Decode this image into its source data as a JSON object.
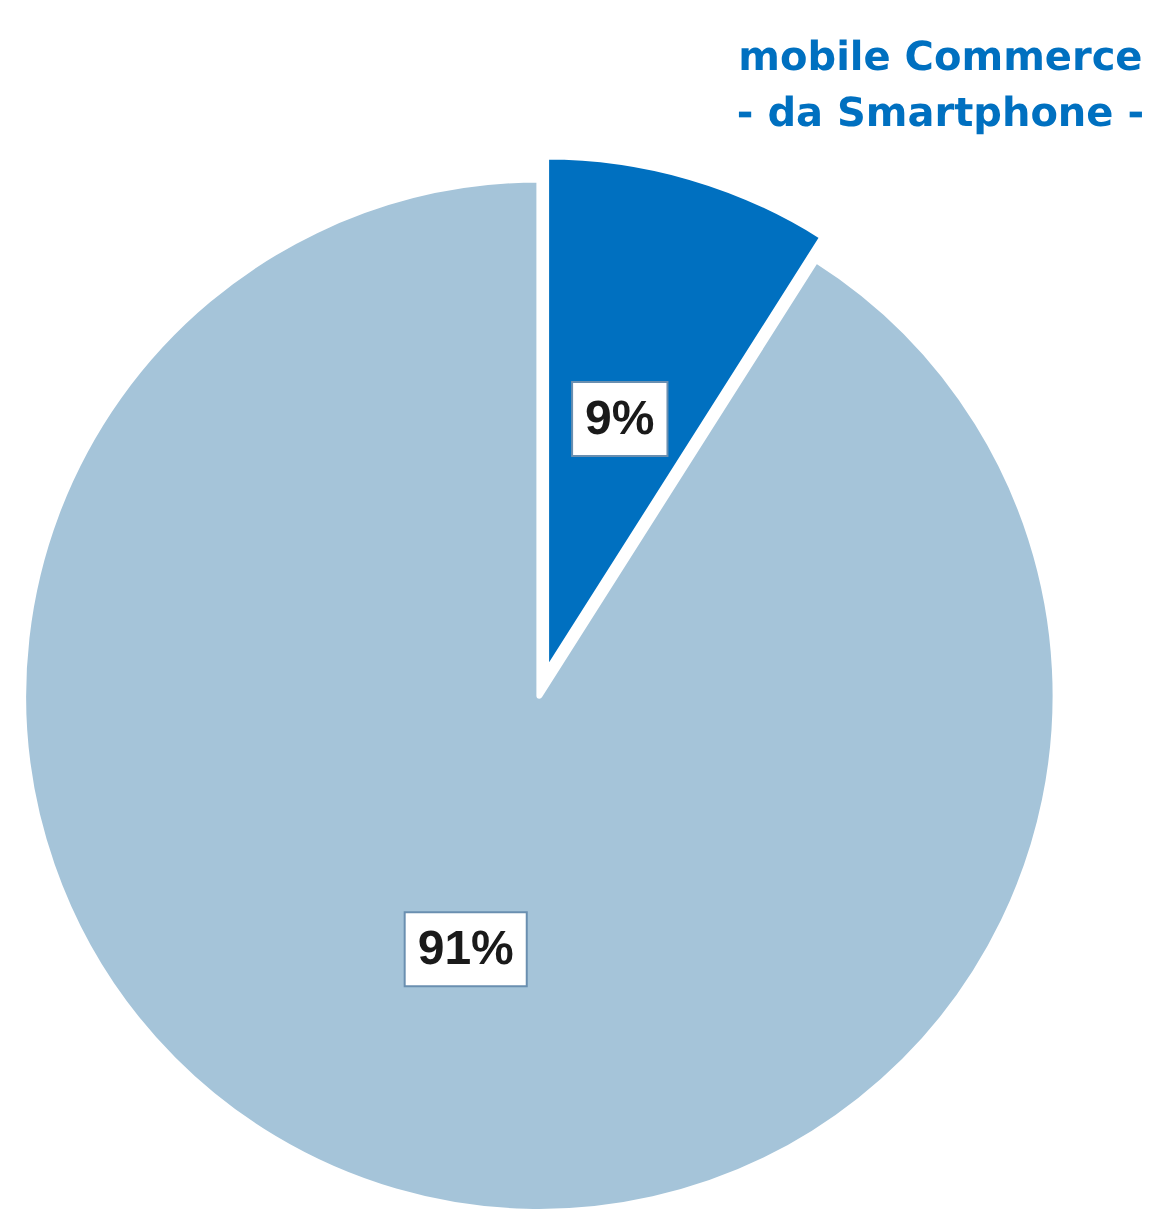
{
  "chart_data": {
    "type": "pie",
    "categories": [
      "mobile Commerce\n- da Smartphone -",
      null
    ],
    "values": [
      9,
      91
    ],
    "colors": [
      "#0070c0",
      "#a5c4d9"
    ],
    "value_labels": [
      "9%",
      "91%"
    ],
    "legend": false
  }
}
